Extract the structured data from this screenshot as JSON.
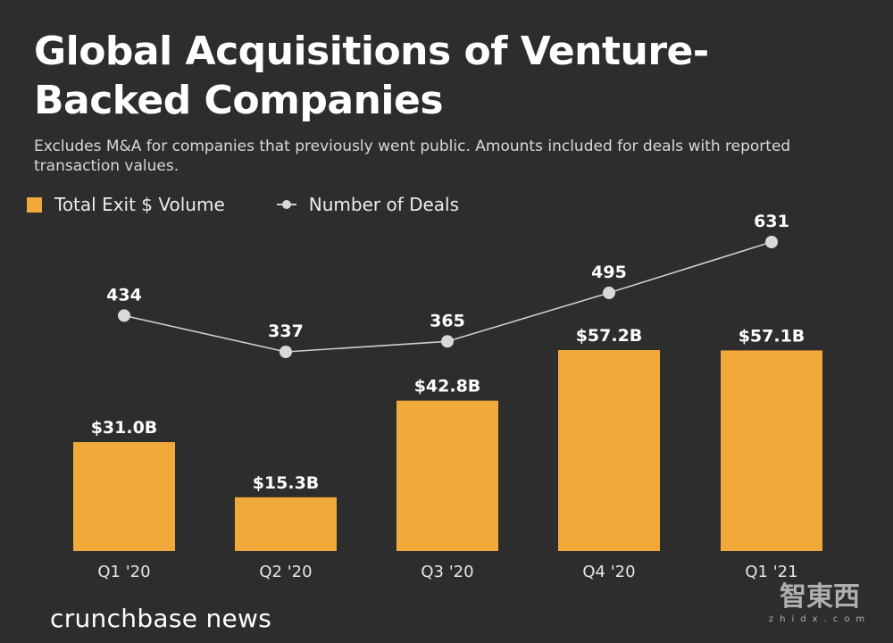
{
  "header": {
    "title": "Global Acquisitions of Venture-Backed Companies",
    "subtitle": "Excludes M&A for companies that previously went public. Amounts included for deals with reported transaction values."
  },
  "legend": {
    "bar_label": "Total Exit $ Volume",
    "line_label": "Number of Deals"
  },
  "chart_data": {
    "type": "bar",
    "categories": [
      "Q1 '20",
      "Q2 '20",
      "Q3 '20",
      "Q4 '20",
      "Q1 '21"
    ],
    "series": [
      {
        "name": "Total Exit $ Volume",
        "type": "bar",
        "unit": "B",
        "values": [
          31.0,
          15.3,
          42.8,
          57.2,
          57.1
        ],
        "labels": [
          "$31.0B",
          "$15.3B",
          "$42.8B",
          "$57.2B",
          "$57.1B"
        ]
      },
      {
        "name": "Number of Deals",
        "type": "line",
        "values": [
          434,
          337,
          365,
          495,
          631
        ],
        "labels": [
          "434",
          "337",
          "365",
          "495",
          "631"
        ]
      }
    ],
    "title": "Global Acquisitions of Venture-Backed Companies",
    "xlabel": "",
    "ylabel": "",
    "legend_position": "top-left",
    "grid": false
  },
  "colors": {
    "background": "#2d2d2d",
    "bar": "#f2a93b",
    "line": "#d0d0d0",
    "marker": "#d9d9d9"
  },
  "footer": {
    "brand": "crunchbase news",
    "watermark_cn": "智東西",
    "watermark_en": "zhidx.com"
  }
}
